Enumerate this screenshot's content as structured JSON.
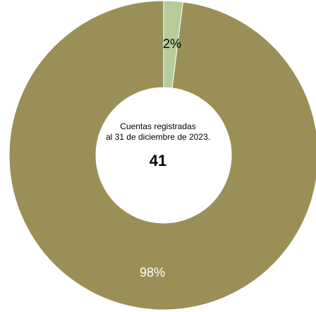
{
  "chart_data": {
    "type": "pie",
    "donut": true,
    "slices": [
      {
        "label": "2%",
        "value": 2,
        "color": "#b5cc9a"
      },
      {
        "label": "98%",
        "value": 98,
        "color": "#9a8f57"
      }
    ],
    "center": {
      "line1": "Cuentas registradas",
      "line2": "al 31 de diciembre de 2023.",
      "total": "41"
    },
    "label_colors": [
      "#000000",
      "#ffffff"
    ]
  }
}
